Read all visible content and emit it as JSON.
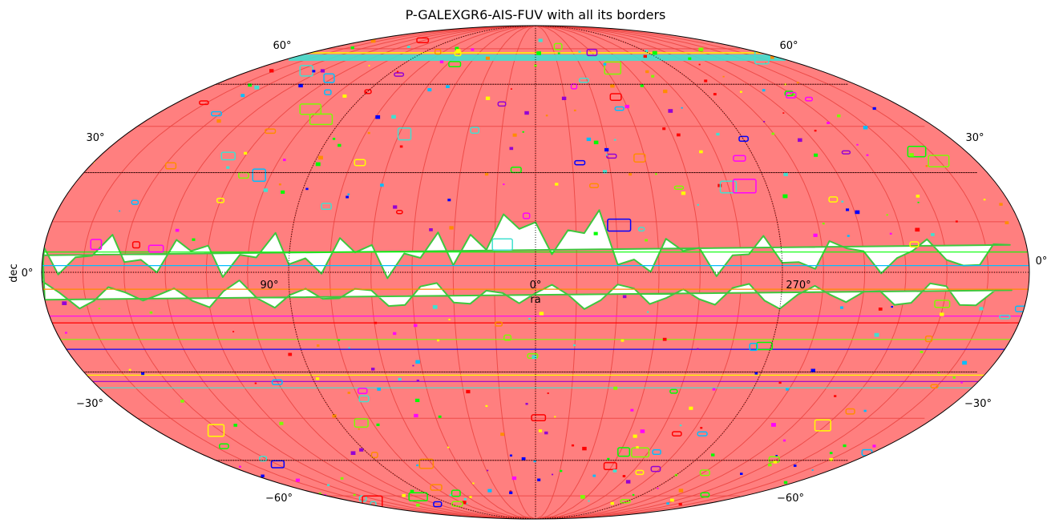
{
  "title": "P-GALEXGR6-AIS-FUV with all its borders",
  "axes": {
    "xlabel": "ra",
    "ylabel": "dec",
    "projection": "mollweide",
    "ra_ticks": [
      {
        "value": 90,
        "label": "90°"
      },
      {
        "value": 0,
        "label": "0°"
      },
      {
        "value": 270,
        "label": "270°"
      }
    ],
    "ra_edge_label": "0°",
    "dec_ticks": [
      {
        "value": 60,
        "label": "60°"
      },
      {
        "value": 30,
        "label": "30°"
      },
      {
        "value": 0,
        "label": "0°"
      },
      {
        "value": -30,
        "label": "−30°"
      },
      {
        "value": -60,
        "label": "−60°"
      }
    ],
    "grid": true,
    "grid_style": "dotted"
  },
  "colors": {
    "coverage_fill": "#ff7f7f",
    "tile_border": "#e8403c",
    "outline": "#000000",
    "border_palette": [
      "#0000ff",
      "#ff00ff",
      "#00ff00",
      "#ffff00",
      "#ff0000",
      "#00bfff",
      "#9400d3",
      "#7cfc00",
      "#ff8c00",
      "#40e0d0"
    ]
  },
  "chart_data": {
    "type": "map",
    "title": "P-GALEXGR6-AIS-FUV with all its borders",
    "xlabel": "ra",
    "ylabel": "dec",
    "dataset": "P-GALEXGR6-AIS-FUV",
    "coverage_description": "sky coverage with a gap along the Galactic plane",
    "gap_band_dec": [
      -5,
      5
    ],
    "border_lines_dec": [
      6,
      2,
      -5,
      -13,
      -15,
      -20,
      -23,
      -31,
      -33,
      -35
    ],
    "ra_range": [
      0,
      360
    ],
    "dec_range": [
      -90,
      90
    ]
  }
}
